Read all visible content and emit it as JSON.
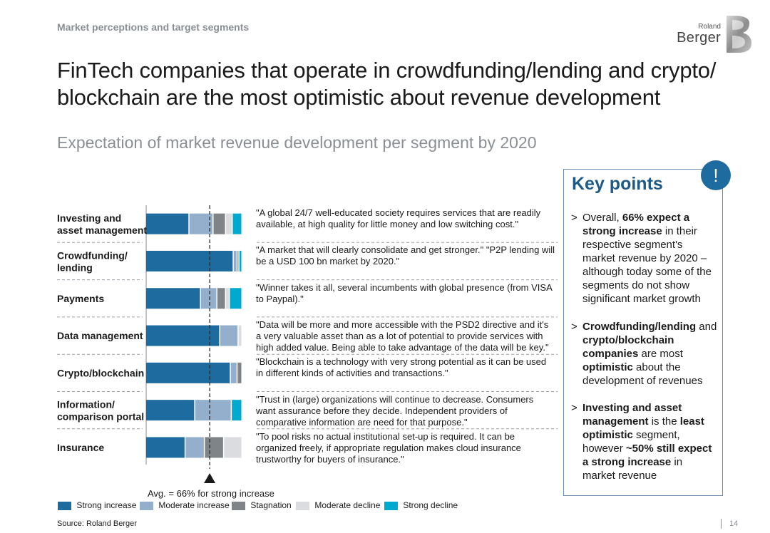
{
  "header": {
    "section_label": "Market perceptions and target segments",
    "headline": "FinTech companies that operate in crowdfunding/lending and crypto/ blockchain are the most optimistic about revenue development",
    "subtitle": "Expectation of market revenue development per segment by 2020",
    "logo_small": "Roland",
    "logo_large": "Berger",
    "logo_mark": "B"
  },
  "colors": {
    "strong_increase": "#1e6ba0",
    "moderate_increase": "#93afcb",
    "stagnation": "#7f8488",
    "moderate_decline": "#dadce0",
    "strong_decline": "#00a9ce",
    "accent": "#1e5a88"
  },
  "chart_data": {
    "type": "bar",
    "orientation": "horizontal-stacked",
    "title": "Expectation of market revenue development per segment by 2020",
    "xlim": [
      0,
      100
    ],
    "x_unit": "% of respondents",
    "categories": [
      "Investing and asset management",
      "Crowdfunding/ lending",
      "Payments",
      "Data management",
      "Crypto/blockchain",
      "Information/ comparison portal",
      "Insurance"
    ],
    "series": [
      {
        "name": "Strong increase",
        "values": [
          45,
          91,
          57,
          77,
          88,
          51,
          41
        ]
      },
      {
        "name": "Moderate increase",
        "values": [
          25,
          4,
          17,
          19,
          7,
          38,
          20
        ]
      },
      {
        "name": "Stagnation",
        "values": [
          13,
          2,
          9,
          0,
          5,
          0,
          20
        ]
      },
      {
        "name": "Moderate decline",
        "values": [
          7,
          0,
          4,
          4,
          0,
          0,
          19
        ]
      },
      {
        "name": "Strong decline",
        "values": [
          10,
          3,
          13,
          0,
          0,
          11,
          0
        ]
      }
    ],
    "average": 66,
    "average_label": "Avg. = 66% for strong increase",
    "quotes": [
      "\"A global 24/7 well-educated society requires services that are readily available, at high quality for little money and low switching cost.\"",
      "\"A market that will clearly consolidate and get stronger.\" \"P2P lending will be a USD 100 bn market by 2020.\"",
      "\"Winner takes it all, several incumbents with global presence (from VISA to Paypal).\"",
      "\"Data will be more and more accessible with the PSD2 directive and it's a very valuable asset than as a lot of potential to provide services with high added value. Being able to take advantage of the data will be key.\"",
      "\"Blockchain is a technology with very strong potential as it can be used in different kinds of activities and transactions.\"",
      "\"Trust in (large) organizations will continue to decrease. Consumers want assurance before they decide. Independent providers of comparative information are need for that purpose.\"",
      "\"To pool risks no actual institutional set-up is required. It can be organized freely, if appropriate regulation makes cloud insurance trustworthy for buyers of insurance.\""
    ],
    "legend": [
      "Strong increase",
      "Moderate increase",
      "Stagnation",
      "Moderate decline",
      "Strong decline"
    ]
  },
  "segments_display": [
    {
      "line1": "Investing and",
      "line2": "asset management"
    },
    {
      "line1": "Crowdfunding/",
      "line2": "lending"
    },
    {
      "line1": "Payments",
      "line2": ""
    },
    {
      "line1": "Data management",
      "line2": ""
    },
    {
      "line1": "Crypto/blockchain",
      "line2": ""
    },
    {
      "line1": "Information/",
      "line2": "comparison portal"
    },
    {
      "line1": "Insurance",
      "line2": ""
    }
  ],
  "key_points": {
    "title": "Key points",
    "badge": "!",
    "bullet_char": ">",
    "items": [
      [
        {
          "t": "Overall, ",
          "b": false
        },
        {
          "t": "66% expect a strong increase",
          "b": true
        },
        {
          "t": " in their respective segment's market revenue by 2020 – although today some of the segments do not show significant market growth",
          "b": false
        }
      ],
      [
        {
          "t": "Crowdfunding/lending",
          "b": true
        },
        {
          "t": " and ",
          "b": false
        },
        {
          "t": "crypto/blockchain companies",
          "b": true
        },
        {
          "t": " are most ",
          "b": false
        },
        {
          "t": "optimistic",
          "b": true
        },
        {
          "t": " about the development of revenues",
          "b": false
        }
      ],
      [
        {
          "t": "Investing and asset management",
          "b": true
        },
        {
          "t": " is the ",
          "b": false
        },
        {
          "t": "least optimistic",
          "b": true
        },
        {
          "t": " segment, however ",
          "b": false
        },
        {
          "t": "~50% still expect a strong increase",
          "b": true
        },
        {
          "t": " in market revenue",
          "b": false
        }
      ]
    ]
  },
  "footer": {
    "source": "Source: Roland Berger",
    "page_number": "14"
  }
}
